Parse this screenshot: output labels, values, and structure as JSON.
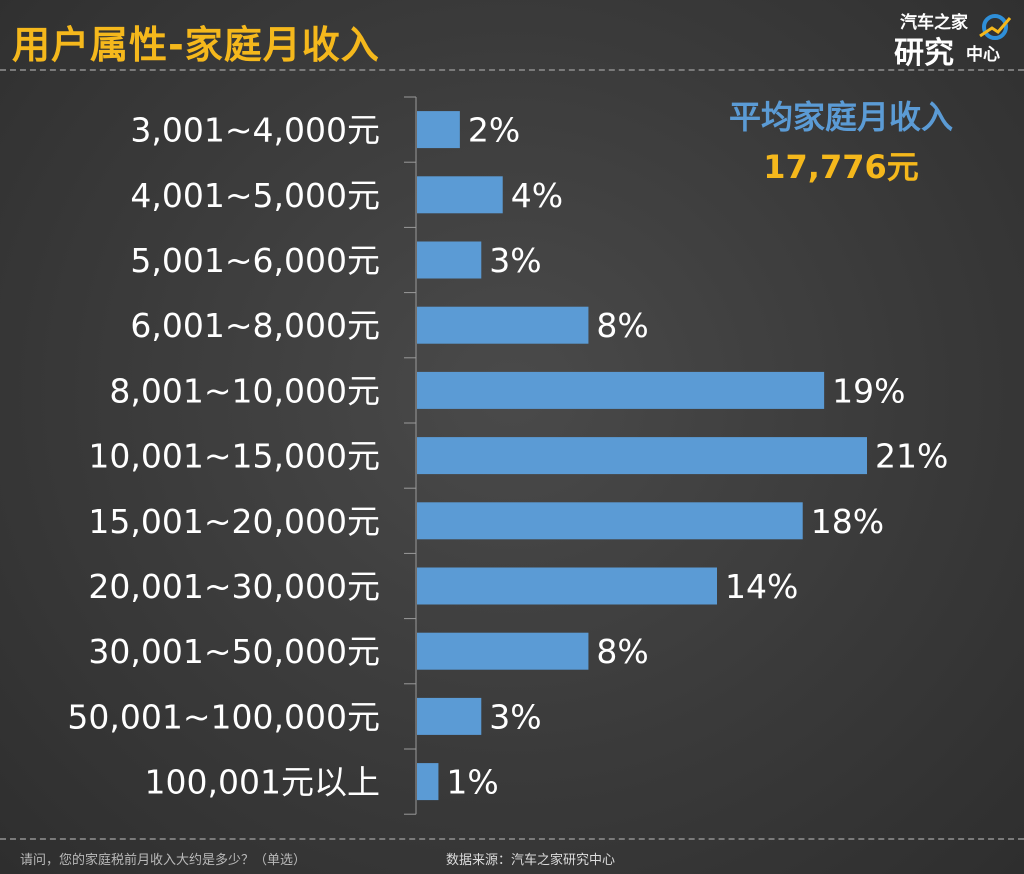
{
  "header": {
    "title": "用户属性-家庭月收入",
    "logo_top": "汽车之家",
    "logo_main": "研究",
    "logo_sub": "中心"
  },
  "callout": {
    "label": "平均家庭月收入",
    "value": "17,776元"
  },
  "footer": {
    "question": "请问，您的家庭税前月收入大约是多少？（单选）",
    "source": "数据来源：汽车之家研究中心"
  },
  "colors": {
    "title": "#f5b81c",
    "bar": "#5b9bd5",
    "avg_label": "#5b9bd5",
    "avg_value": "#f5b81c",
    "axis": "#9a9a9a",
    "text": "#ffffff"
  },
  "chart_data": {
    "type": "bar",
    "orientation": "horizontal",
    "categories": [
      "3,001~4,000元",
      "4,001~5,000元",
      "5,001~6,000元",
      "6,001~8,000元",
      "8,001~10,000元",
      "10,001~15,000元",
      "15,001~20,000元",
      "20,001~30,000元",
      "30,001~50,000元",
      "50,001~100,000元",
      "100,001元以上"
    ],
    "values": [
      2,
      4,
      3,
      8,
      19,
      21,
      18,
      14,
      8,
      3,
      1
    ],
    "data_labels": [
      "2%",
      "4%",
      "3%",
      "8%",
      "19%",
      "21%",
      "18%",
      "14%",
      "8%",
      "3%",
      "1%"
    ],
    "unit": "%",
    "xlim": [
      0,
      21
    ]
  }
}
